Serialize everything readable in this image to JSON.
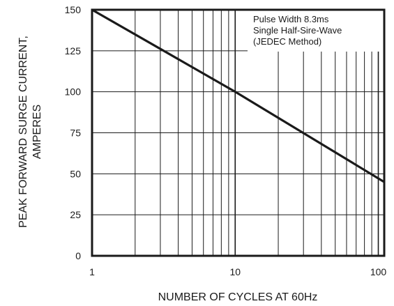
{
  "chart_data": {
    "type": "line",
    "title": "",
    "xlabel": "NUMBER OF CYCLES AT 60Hz",
    "ylabel_lines": [
      "PEAK FORWARD SURGE CURRENT,",
      "AMPERES"
    ],
    "x_scale": "log",
    "xlim": [
      1,
      110
    ],
    "ylim": [
      0,
      150
    ],
    "x_ticks": [
      1,
      10,
      100
    ],
    "x_tick_labels": [
      "1",
      "10",
      "100"
    ],
    "y_ticks": [
      0,
      25,
      50,
      75,
      100,
      125,
      150
    ],
    "y_tick_labels": [
      "0",
      "25",
      "50",
      "75",
      "100",
      "125",
      "150"
    ],
    "grid": true,
    "annotation": [
      "Pulse Width 8.3ms",
      "Single Half-Sire-Wave",
      "(JEDEC Method)"
    ],
    "series": [
      {
        "x": [
          1,
          10,
          110
        ],
        "y": [
          150,
          100,
          45
        ]
      }
    ],
    "colors": {
      "line": "#1a1a1a",
      "grid": "#1a1a1a",
      "frame": "#1a1a1a",
      "background": "#ffffff"
    }
  }
}
